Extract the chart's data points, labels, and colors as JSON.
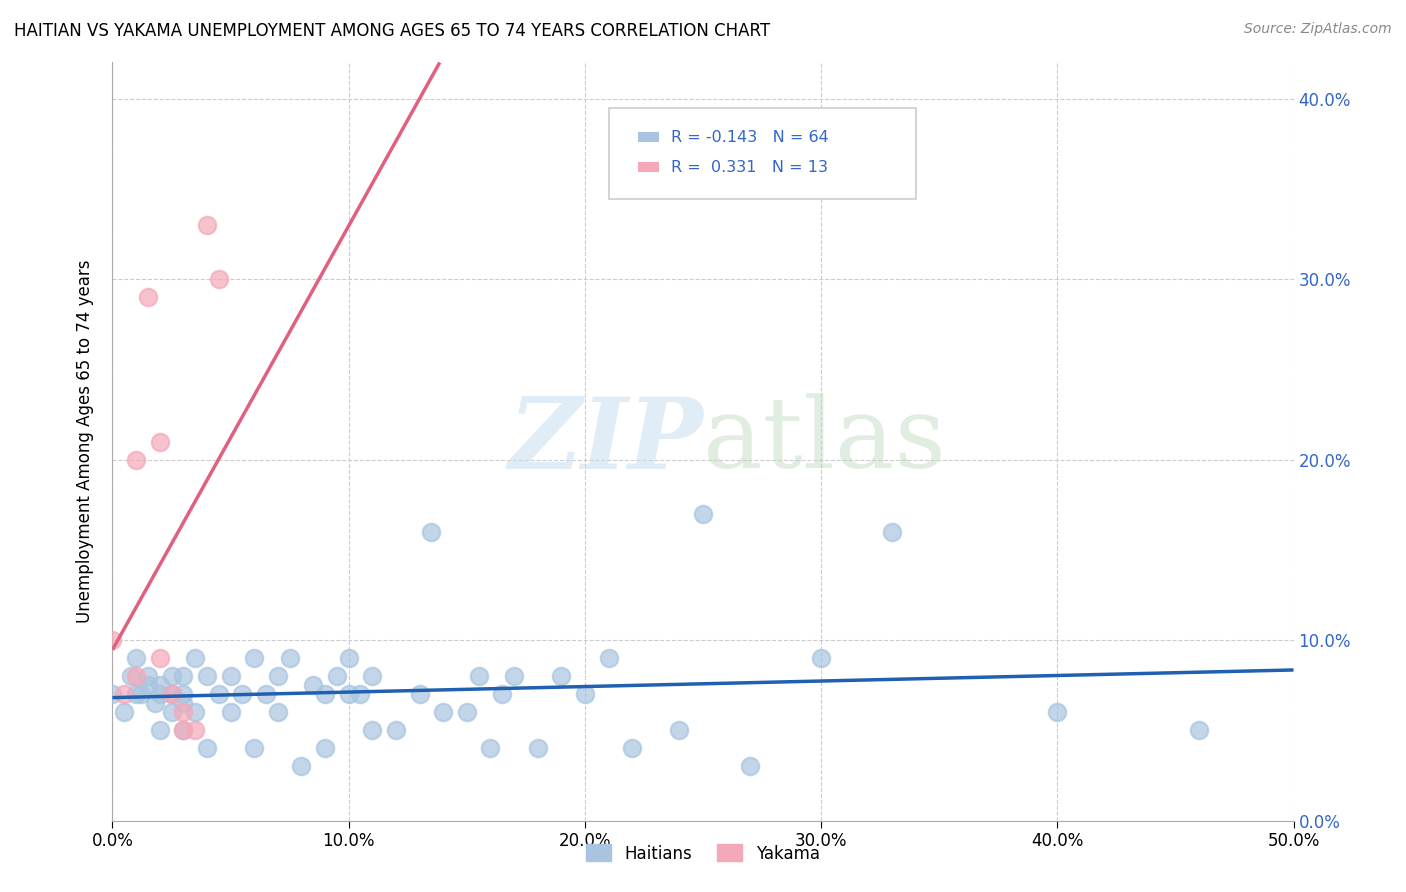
{
  "title": "HAITIAN VS YAKAMA UNEMPLOYMENT AMONG AGES 65 TO 74 YEARS CORRELATION CHART",
  "source": "Source: ZipAtlas.com",
  "ylabel": "Unemployment Among Ages 65 to 74 years",
  "xlim": [
    0.0,
    0.5
  ],
  "ylim": [
    0.0,
    0.42
  ],
  "xticks": [
    0.0,
    0.1,
    0.2,
    0.3,
    0.4,
    0.5
  ],
  "yticks": [
    0.0,
    0.1,
    0.2,
    0.3,
    0.4
  ],
  "xtick_labels": [
    "0.0%",
    "10.0%",
    "20.0%",
    "30.0%",
    "40.0%",
    "50.0%"
  ],
  "ytick_labels": [
    "0.0%",
    "10.0%",
    "20.0%",
    "30.0%",
    "40.0%"
  ],
  "haitians_R": -0.143,
  "haitians_N": 64,
  "yakama_R": 0.331,
  "yakama_N": 13,
  "haitians_color": "#a8c4e0",
  "yakama_color": "#f4a8b8",
  "trend_haitians_color": "#2060b0",
  "trend_yakama_color": "#e06080",
  "watermark_zip": "ZIP",
  "watermark_atlas": "atlas",
  "grid_color": "#cccccc",
  "haitians_x": [
    0.0,
    0.005,
    0.008,
    0.01,
    0.01,
    0.012,
    0.015,
    0.015,
    0.018,
    0.02,
    0.02,
    0.02,
    0.025,
    0.025,
    0.025,
    0.03,
    0.03,
    0.03,
    0.03,
    0.035,
    0.035,
    0.04,
    0.04,
    0.045,
    0.05,
    0.05,
    0.055,
    0.06,
    0.06,
    0.065,
    0.07,
    0.07,
    0.075,
    0.08,
    0.085,
    0.09,
    0.09,
    0.095,
    0.1,
    0.1,
    0.105,
    0.11,
    0.11,
    0.12,
    0.13,
    0.135,
    0.14,
    0.15,
    0.155,
    0.16,
    0.165,
    0.17,
    0.18,
    0.19,
    0.2,
    0.21,
    0.22,
    0.24,
    0.25,
    0.27,
    0.3,
    0.33,
    0.4,
    0.46
  ],
  "haitians_y": [
    0.07,
    0.06,
    0.08,
    0.07,
    0.09,
    0.07,
    0.075,
    0.08,
    0.065,
    0.05,
    0.07,
    0.075,
    0.06,
    0.07,
    0.08,
    0.05,
    0.065,
    0.07,
    0.08,
    0.06,
    0.09,
    0.04,
    0.08,
    0.07,
    0.06,
    0.08,
    0.07,
    0.04,
    0.09,
    0.07,
    0.06,
    0.08,
    0.09,
    0.03,
    0.075,
    0.04,
    0.07,
    0.08,
    0.07,
    0.09,
    0.07,
    0.05,
    0.08,
    0.05,
    0.07,
    0.16,
    0.06,
    0.06,
    0.08,
    0.04,
    0.07,
    0.08,
    0.04,
    0.08,
    0.07,
    0.09,
    0.04,
    0.05,
    0.17,
    0.03,
    0.09,
    0.16,
    0.06,
    0.05
  ],
  "yakama_x": [
    0.0,
    0.005,
    0.01,
    0.01,
    0.015,
    0.02,
    0.02,
    0.025,
    0.03,
    0.03,
    0.035,
    0.04,
    0.045
  ],
  "yakama_y": [
    0.1,
    0.07,
    0.08,
    0.2,
    0.29,
    0.09,
    0.21,
    0.07,
    0.05,
    0.06,
    0.05,
    0.33,
    0.3
  ]
}
